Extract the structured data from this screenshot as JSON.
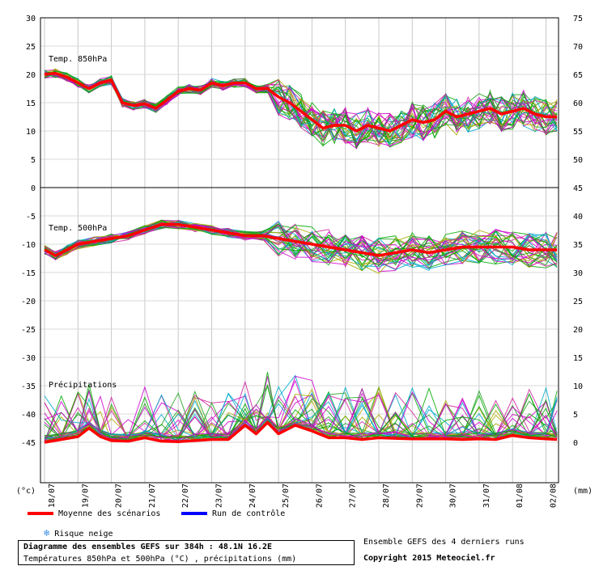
{
  "chart_data": {
    "type": "line",
    "dates": [
      "18/07",
      "19/07",
      "20/07",
      "21/07",
      "22/07",
      "23/07",
      "24/07",
      "25/07",
      "26/07",
      "27/07",
      "28/07",
      "29/07",
      "30/07",
      "31/07",
      "01/08",
      "02/08"
    ],
    "left_axis": {
      "unit": "(°c)",
      "ticks": [
        30,
        25,
        20,
        15,
        10,
        5,
        0,
        -5,
        -10,
        -15,
        -20,
        -25,
        -30,
        -35,
        -40,
        -45
      ]
    },
    "right_axis": {
      "unit": "(mm)",
      "ticks": [
        75,
        70,
        65,
        60,
        55,
        50,
        45,
        40,
        35,
        30,
        25,
        20,
        15,
        10,
        5,
        0
      ]
    },
    "panels": [
      {
        "label": "Temp. 850hPa",
        "ylim": [
          0,
          30
        ]
      },
      {
        "label": "Temp. 500hPa",
        "ylim": [
          -25,
          -5
        ]
      },
      {
        "label": "Précipitations",
        "ylim": [
          0,
          20
        ]
      }
    ],
    "series": [
      {
        "name": "Moyenne des scénarios",
        "panel": 0,
        "color": "#ff0000",
        "x": [
          0,
          0.33,
          0.67,
          1,
          1.33,
          1.67,
          2,
          2.33,
          2.67,
          3,
          3.33,
          3.67,
          4,
          4.33,
          4.67,
          5,
          5.33,
          5.67,
          6,
          6.33,
          6.67,
          7,
          7.33,
          7.67,
          8,
          8.33,
          8.67,
          9,
          9.33,
          9.67,
          10,
          10.33,
          10.67,
          11,
          11.33,
          11.67,
          12,
          12.33,
          12.67,
          13,
          13.33,
          13.67,
          14,
          14.33,
          14.67,
          15,
          15.33
        ],
        "y": [
          20,
          20.2,
          19.5,
          18.5,
          17.5,
          18.5,
          19,
          15,
          14.5,
          14.8,
          14,
          15.5,
          17,
          17.5,
          17.2,
          18.5,
          18,
          18.5,
          18.5,
          17.5,
          17.5,
          16,
          15,
          13.5,
          12,
          10.5,
          11,
          11,
          10,
          11,
          10.5,
          10,
          11,
          12,
          11.5,
          12,
          13.5,
          12.5,
          13,
          13.5,
          14,
          13,
          13.5,
          14,
          13,
          12.5,
          12.5
        ]
      },
      {
        "name": "Moyenne des scénarios",
        "panel": 1,
        "color": "#ff0000",
        "x": [
          0,
          0.33,
          0.67,
          1,
          1.5,
          2,
          2.5,
          3,
          3.5,
          4,
          4.5,
          5,
          5.5,
          6,
          6.5,
          7,
          7.5,
          8,
          8.5,
          9,
          9.5,
          10,
          10.5,
          11,
          11.5,
          12,
          12.5,
          13,
          13.5,
          14,
          14.5,
          15,
          15.33
        ],
        "y": [
          -11,
          -12,
          -11,
          -10,
          -9.5,
          -9,
          -8.5,
          -7.5,
          -6.5,
          -6.5,
          -7,
          -7.5,
          -8,
          -8.5,
          -8.5,
          -9,
          -9.5,
          -10,
          -10.5,
          -11,
          -11.5,
          -12,
          -11.5,
          -11,
          -11.5,
          -11,
          -10.5,
          -10.5,
          -10.5,
          -10.5,
          -11,
          -11,
          -11
        ]
      },
      {
        "name": "Moyenne des scénarios",
        "panel": 2,
        "color": "#ff0000",
        "x": [
          0,
          0.5,
          1,
          1.33,
          1.67,
          2,
          2.5,
          3,
          3.5,
          4,
          4.5,
          5,
          5.5,
          6,
          6.33,
          6.67,
          7,
          7.5,
          8,
          8.5,
          9,
          9.5,
          10,
          10.5,
          11,
          11.5,
          12,
          12.5,
          13,
          13.5,
          14,
          14.5,
          15,
          15.33
        ],
        "y": [
          0,
          0.5,
          1,
          2.5,
          1,
          0.3,
          0.2,
          0.8,
          0.2,
          0.1,
          0.3,
          0.5,
          0.5,
          3,
          1.5,
          3.5,
          1.5,
          3,
          2,
          0.8,
          0.8,
          0.5,
          0.8,
          0.7,
          0.6,
          0.6,
          0.6,
          0.5,
          0.6,
          0.5,
          1.2,
          0.8,
          0.6,
          0.5
        ]
      }
    ]
  },
  "legend": {
    "mean_label": "Moyenne des scénarios",
    "control_label": "Run de contrôle",
    "snow_label": "Risque neige",
    "mean_color": "#ff0000",
    "control_color": "#0000ff",
    "snow_icon": "snowflake-icon"
  },
  "info": {
    "title": "Diagramme des ensembles GEFS sur 384h : 48.1N 16.2E",
    "subtitle": "Températures 850hPa et 500hPa (°C) , précipitations (mm)",
    "runs_note": "Ensemble GEFS des 4 derniers runs",
    "copyright": "Copyright 2015 Meteociel.fr"
  }
}
